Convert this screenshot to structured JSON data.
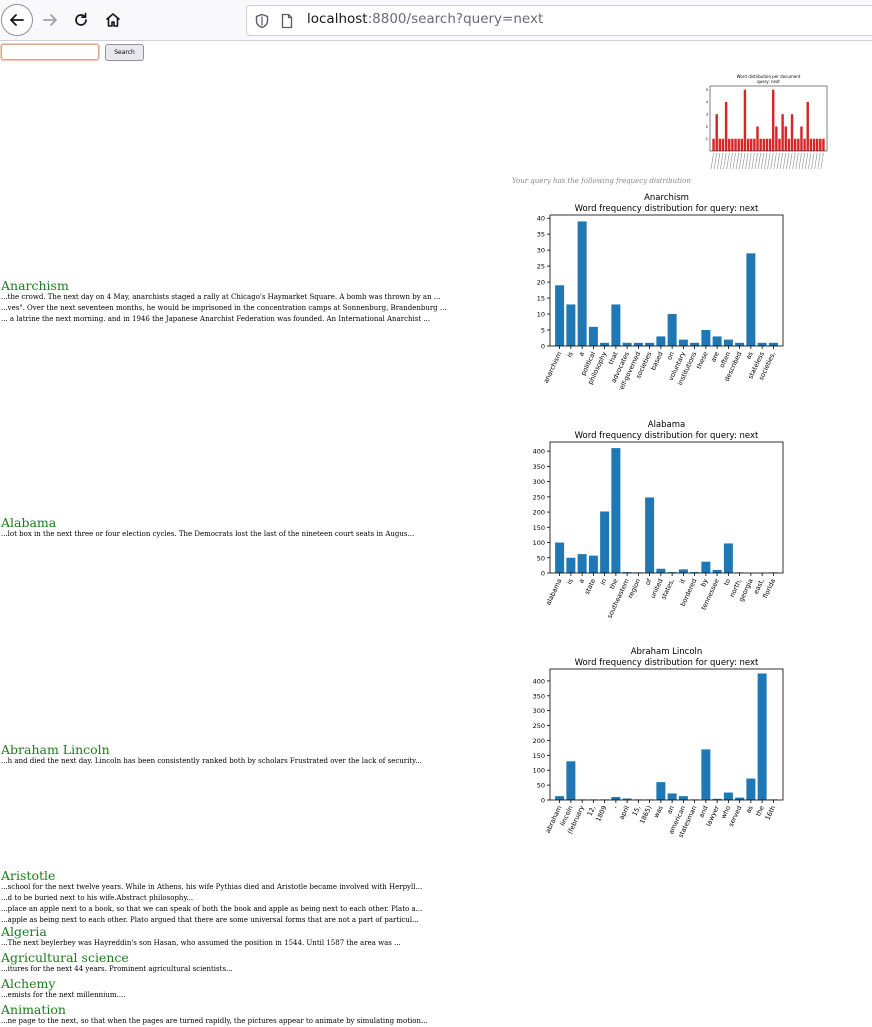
{
  "browser": {
    "url_host": "localhost",
    "url_rest": ":8800/search?query=next"
  },
  "search": {
    "input_value": "",
    "button_label": "Search"
  },
  "summary": {
    "caption": "Your query has the following frequecy distribution",
    "chart": {
      "type": "bar",
      "title": "Word distribution per document",
      "subtitle": "query: next",
      "bar_color": "#d62728",
      "ylim": [
        0,
        5
      ],
      "yticks": [
        1,
        2,
        3,
        4,
        5
      ],
      "values": [
        1,
        3,
        1,
        1,
        4,
        1,
        1,
        1,
        1,
        1,
        5,
        1,
        1,
        1,
        2,
        1,
        1,
        1,
        1,
        5,
        2,
        1,
        3,
        2,
        1,
        3,
        1,
        1,
        2,
        1,
        4,
        1,
        1,
        1,
        1,
        1
      ]
    }
  },
  "results": [
    {
      "title": "Anarchism",
      "snippets": [
        "...the crowd. The next day on 4 May, anarchists staged a rally at Chicago's Haymarket Square. A bomb was thrown by an ...",
        "...ves\". Over the next seventeen months, he would be imprisoned in the concentration camps at Sonnenburg, Brandenburg ...",
        "... a latrine the next morning. and in 1946 the Japanese Anarchist Federation was founded. An International Anarchist ..."
      ]
    },
    {
      "title": "Alabama",
      "snippets": [
        "...lot box in the next three or four election cycles. The Democrats lost the last of the nineteen court seats in Augus..."
      ]
    },
    {
      "title": "Abraham Lincoln",
      "snippets": [
        "...h and died the next day. Lincoln has been consistently ranked both by scholars Frustrated over the lack of security..."
      ]
    },
    {
      "title": "Aristotle",
      "snippets": [
        "...school for the next twelve years. While in Athens, his wife Pythias died and Aristotle became involved with Herpyll...",
        "...d to be buried next to his wife.Abstract philosophy...",
        "...place an apple next to a book, so that we can speak of both the book and apple as being next to each other. Plato a...",
        "...apple as being next to each other. Plato argued that there are some universal forms that are not a part of particul..."
      ]
    },
    {
      "title": "Algeria",
      "snippets": [
        "...The next beylerbey was Hayreddin's son Hasan, who assumed the position in 1544. Until 1587 the area was ..."
      ]
    },
    {
      "title": "Agricultural science",
      "snippets": [
        "...itures for the next 44 years. Prominent agricultural scientists..."
      ]
    },
    {
      "title": "Alchemy",
      "snippets": [
        "...emists for the next millennium...."
      ]
    },
    {
      "title": "Animation",
      "snippets": [
        "...ne page to the next, so that when the pages are turned rapidly, the pictures appear to animate by simulating motion..."
      ]
    }
  ],
  "chart_data": [
    {
      "type": "bar",
      "title": "Anarchism",
      "subtitle": "Word frequency distribution for query: next",
      "color": "#1f77b4",
      "ylim": [
        0,
        41
      ],
      "yticks": [
        0,
        5,
        10,
        15,
        20,
        25,
        30,
        35,
        40
      ],
      "categories": [
        "anarchism",
        "is",
        "a",
        "political",
        "philosophy",
        "that",
        "advocates",
        "self-governed",
        "societies",
        "based",
        "on",
        "voluntary",
        "institutions",
        "these",
        "are",
        "often",
        "described",
        "as",
        "stateless",
        "societies,"
      ],
      "values": [
        19,
        13,
        39,
        6,
        1,
        13,
        1,
        1,
        1,
        3,
        10,
        2,
        1,
        5,
        3,
        2,
        1,
        29,
        1,
        1
      ]
    },
    {
      "type": "bar",
      "title": "Alabama",
      "subtitle": "Word frequency distribution for query: next",
      "color": "#1f77b4",
      "ylim": [
        0,
        430
      ],
      "yticks": [
        0,
        50,
        100,
        150,
        200,
        250,
        300,
        350,
        400
      ],
      "categories": [
        "alabama",
        "is",
        "a",
        "state",
        "in",
        "the",
        "southeastern",
        "region",
        "of",
        "united",
        "states,",
        "it",
        "bordered",
        "by",
        "tennessee",
        "to",
        "north,",
        "georgia",
        "east,",
        "florida"
      ],
      "values": [
        100,
        50,
        62,
        57,
        202,
        410,
        3,
        2,
        248,
        14,
        3,
        12,
        3,
        37,
        10,
        97,
        2,
        1,
        1,
        2
      ]
    },
    {
      "type": "bar",
      "title": "Abraham Lincoln",
      "subtitle": "Word frequency distribution for query: next",
      "color": "#1f77b4",
      "ylim": [
        0,
        440
      ],
      "yticks": [
        0,
        50,
        100,
        150,
        200,
        250,
        300,
        350,
        400
      ],
      "categories": [
        "abraham",
        "lincoln",
        "(february",
        "12,",
        "1809",
        "-",
        "april",
        "15,",
        "1865)",
        "was",
        "an",
        "american",
        "statesman",
        "and",
        "lawyer",
        "who",
        "served",
        "as",
        "the",
        "16th"
      ],
      "values": [
        13,
        130,
        2,
        2,
        2,
        10,
        5,
        2,
        2,
        60,
        22,
        13,
        2,
        170,
        4,
        25,
        8,
        72,
        425,
        2
      ]
    }
  ]
}
